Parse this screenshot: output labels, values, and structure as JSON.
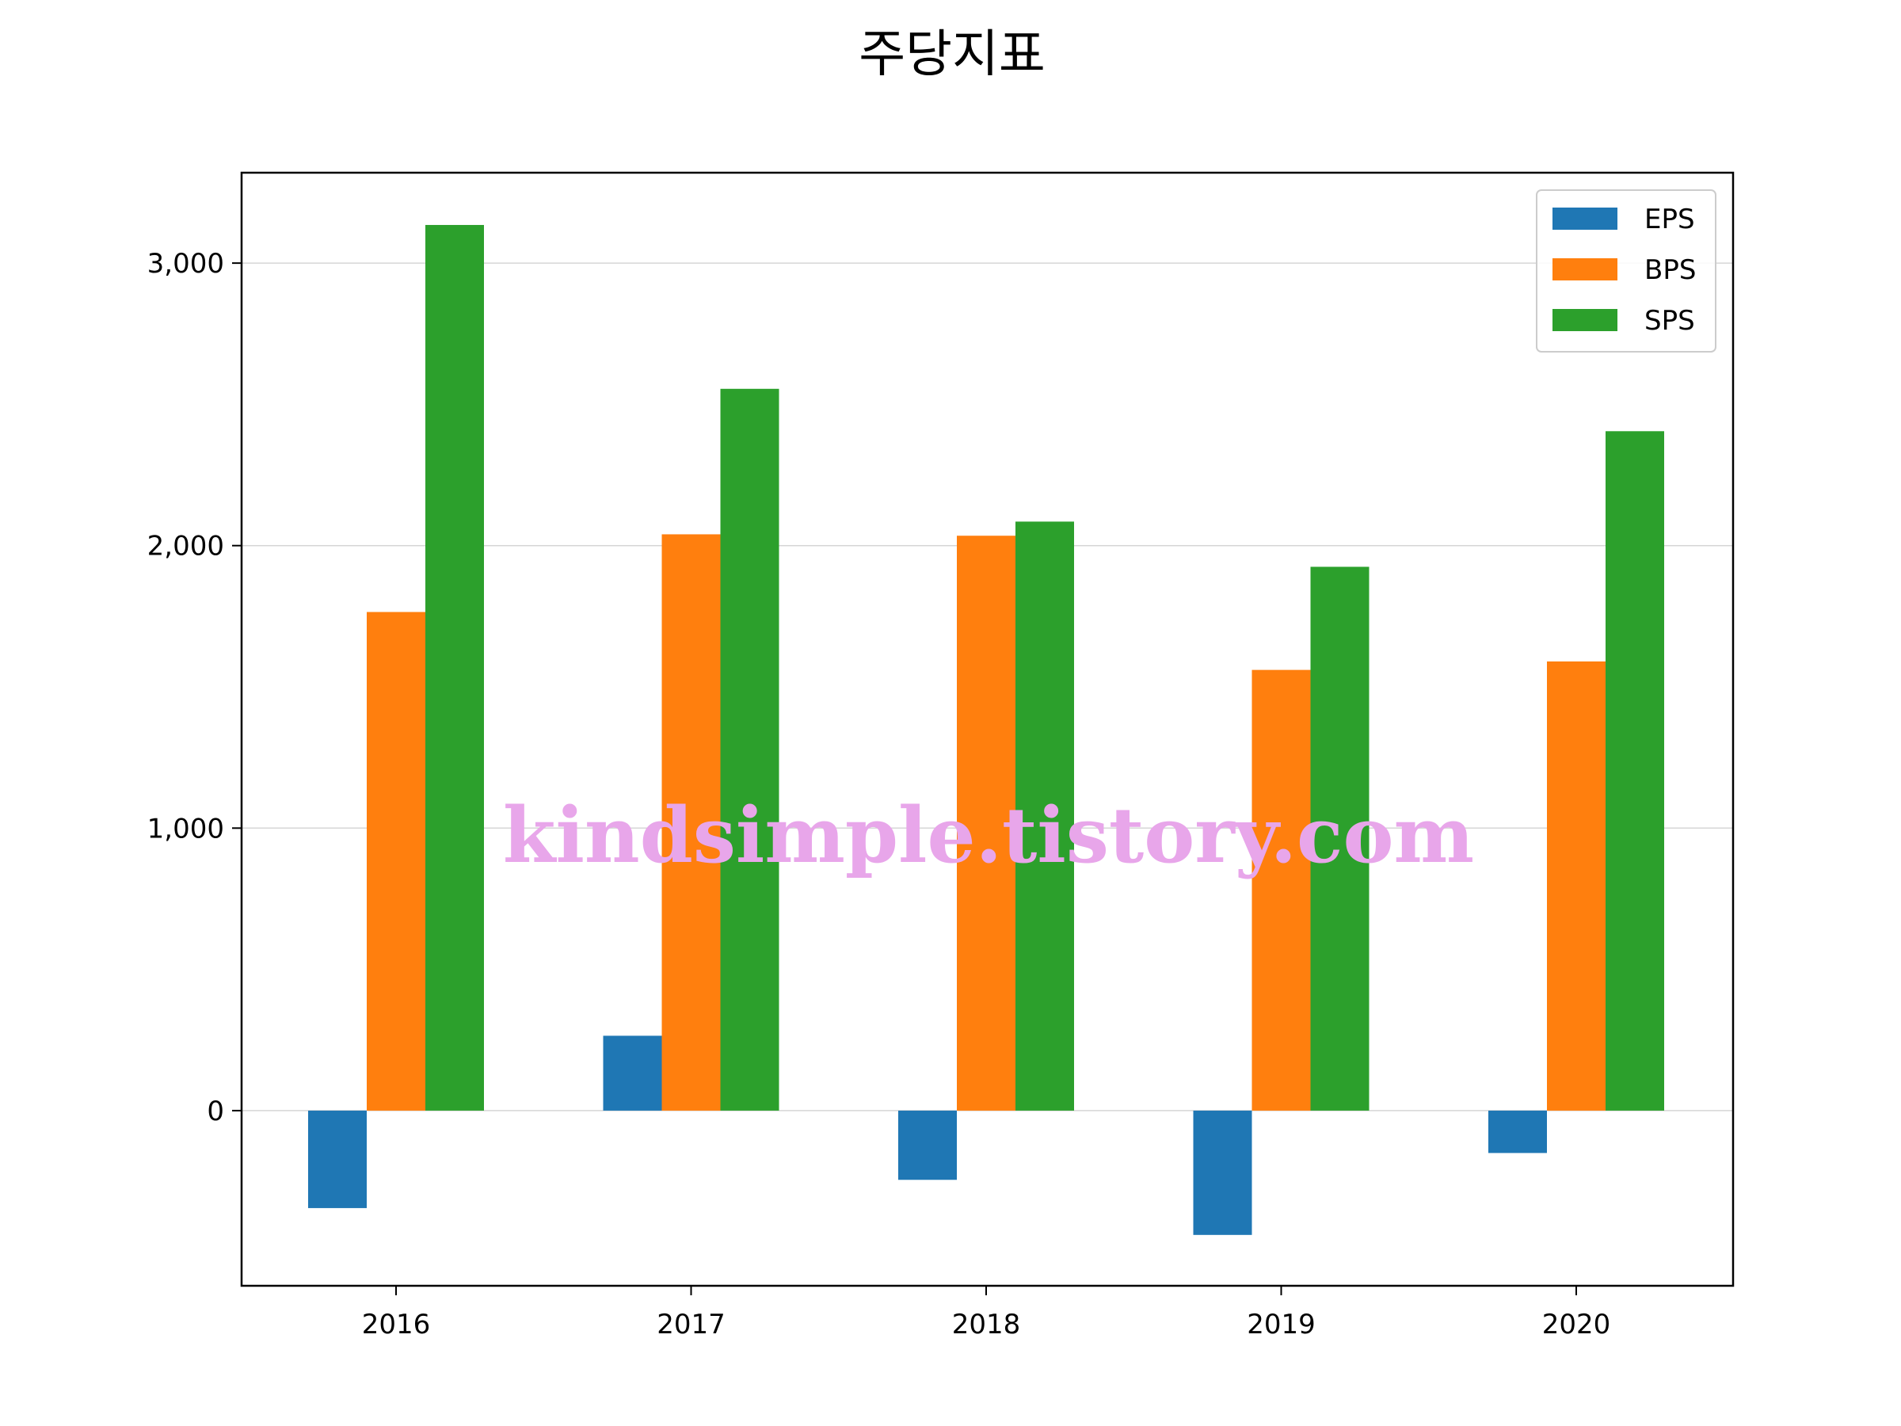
{
  "chart_data": {
    "type": "bar",
    "title": "주당지표",
    "xlabel": "",
    "ylabel": "",
    "categories": [
      "2016",
      "2017",
      "2018",
      "2019",
      "2020"
    ],
    "series": [
      {
        "name": "EPS",
        "color": "#1f77b4",
        "values": [
          -345,
          265,
          -245,
          -440,
          -150
        ]
      },
      {
        "name": "BPS",
        "color": "#ff7f0e",
        "values": [
          1765,
          2040,
          2035,
          1560,
          1590
        ]
      },
      {
        "name": "SPS",
        "color": "#2ca02c",
        "values": [
          3135,
          2555,
          2085,
          1925,
          2405
        ]
      }
    ],
    "ylim": [
      -620,
      3320
    ],
    "yticks": [
      0,
      1000,
      2000,
      3000
    ],
    "ytick_labels": [
      "0",
      "1,000",
      "2,000",
      "3,000"
    ],
    "grid": "y-major",
    "legend_position": "top-right",
    "watermark": "kindsimple.tistory.com"
  }
}
